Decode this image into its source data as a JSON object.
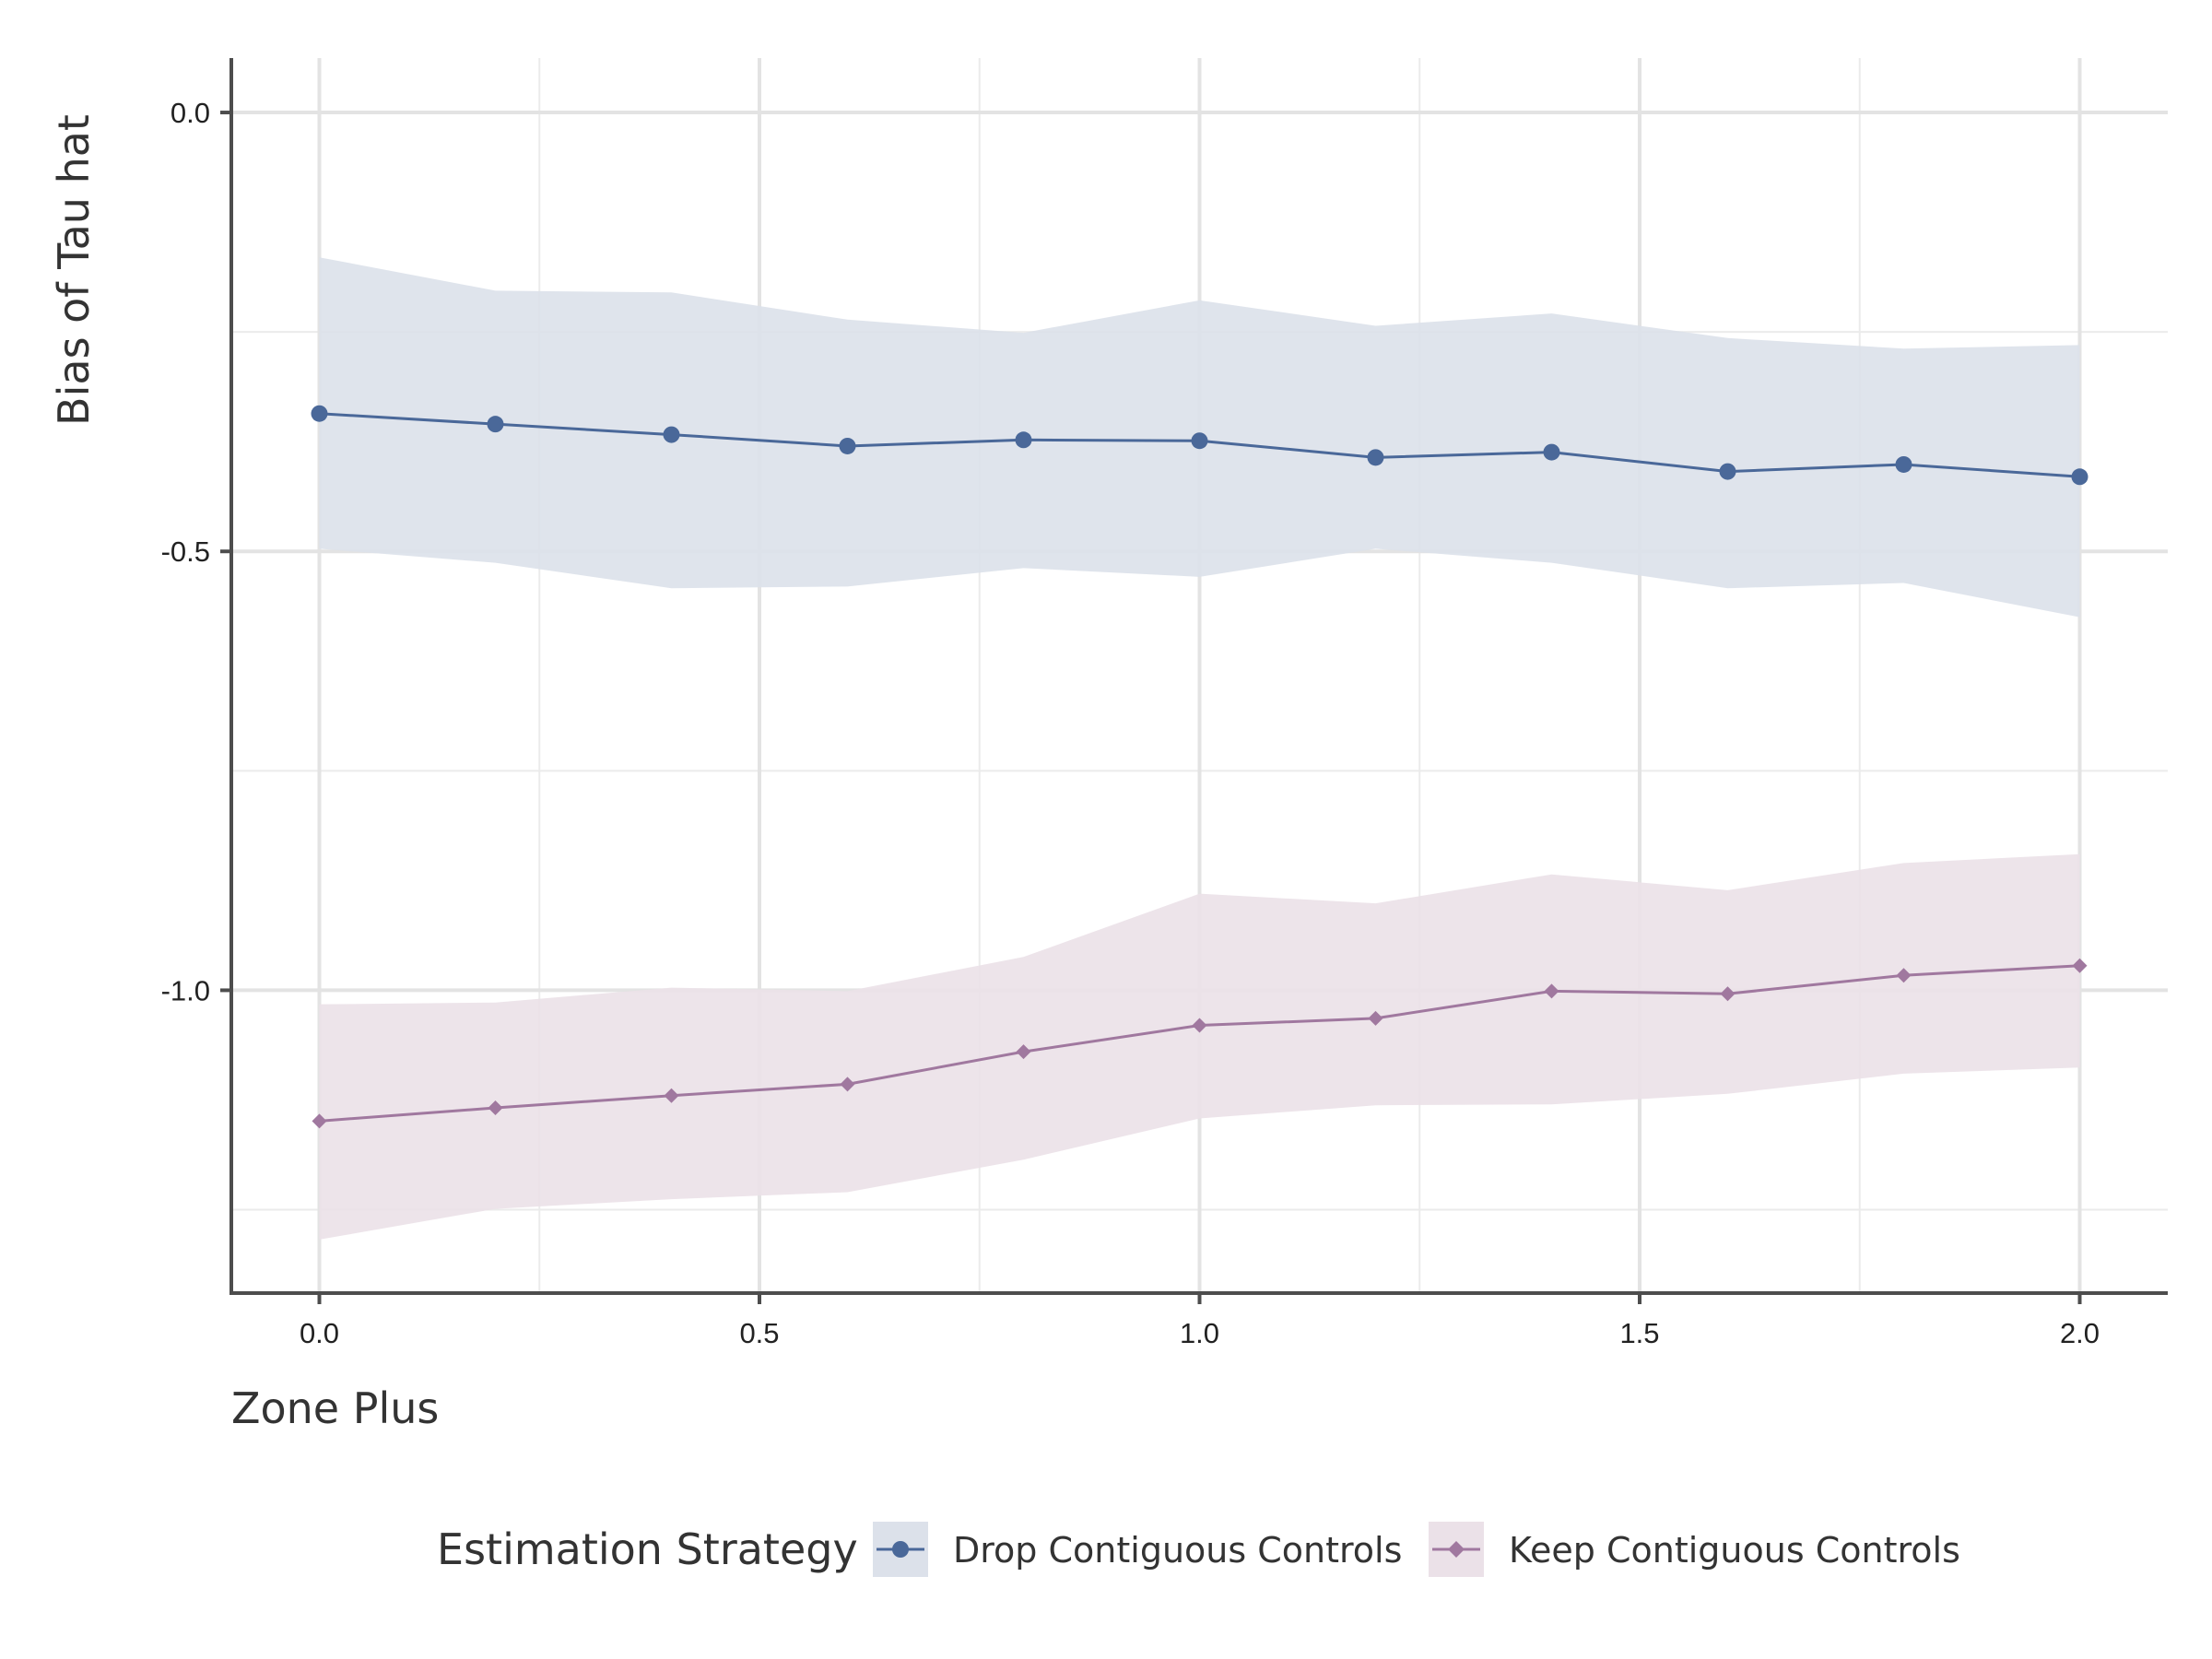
{
  "chart_data": {
    "type": "line",
    "xlabel": "Zone Plus",
    "ylabel": "Bias of Tau hat",
    "xlim": [
      -0.1,
      2.1
    ],
    "ylim": [
      -1.345,
      0.062
    ],
    "x_ticks": [
      0.0,
      0.5,
      1.0,
      1.5,
      2.0
    ],
    "x_tick_labels": [
      "0.0",
      "0.5",
      "1.0",
      "1.5",
      "2.0"
    ],
    "y_ticks": [
      0.0,
      -0.5,
      -1.0
    ],
    "y_tick_labels": [
      "0.0",
      "-0.5",
      "-1.0"
    ],
    "grid": true,
    "legend_position": "bottom",
    "legend_title": "Estimation Strategy",
    "x": [
      0.0,
      0.2,
      0.4,
      0.6,
      0.8,
      1.0,
      1.2,
      1.4,
      1.6,
      1.8,
      2.0
    ],
    "series": [
      {
        "name": "Drop Contiguous Controls",
        "marker": "circle",
        "color": "#4A6899",
        "band_color": "#DCE1EA",
        "values": [
          -0.343,
          -0.355,
          -0.367,
          -0.38,
          -0.373,
          -0.374,
          -0.393,
          -0.387,
          -0.409,
          -0.401,
          -0.415
        ],
        "lower": [
          -0.497,
          -0.513,
          -0.542,
          -0.54,
          -0.519,
          -0.529,
          -0.497,
          -0.513,
          -0.542,
          -0.536,
          -0.575
        ],
        "upper": [
          -0.165,
          -0.203,
          -0.205,
          -0.236,
          -0.251,
          -0.214,
          -0.243,
          -0.229,
          -0.257,
          -0.269,
          -0.265
        ]
      },
      {
        "name": "Keep Contiguous Controls",
        "marker": "diamond",
        "color": "#A0789F",
        "band_color": "#EBE1E8",
        "values": [
          -1.149,
          -1.134,
          -1.12,
          -1.107,
          -1.07,
          -1.04,
          -1.032,
          -1.001,
          -1.004,
          -0.983,
          -0.972
        ],
        "lower": [
          -1.284,
          -1.249,
          -1.238,
          -1.23,
          -1.193,
          -1.146,
          -1.131,
          -1.13,
          -1.118,
          -1.095,
          -1.088
        ],
        "upper": [
          -1.016,
          -1.014,
          -0.997,
          -1.001,
          -0.962,
          -0.89,
          -0.901,
          -0.868,
          -0.886,
          -0.855,
          -0.845
        ]
      }
    ]
  }
}
